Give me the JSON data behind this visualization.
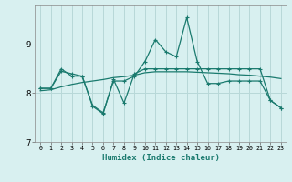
{
  "x": [
    0,
    1,
    2,
    3,
    4,
    5,
    6,
    7,
    8,
    9,
    10,
    11,
    12,
    13,
    14,
    15,
    16,
    17,
    18,
    19,
    20,
    21,
    22,
    23
  ],
  "line1_y": [
    8.1,
    8.1,
    8.45,
    8.4,
    8.35,
    7.75,
    7.6,
    8.25,
    8.25,
    8.35,
    8.65,
    9.1,
    8.85,
    8.75,
    9.55,
    8.65,
    8.2,
    8.2,
    8.25,
    8.25,
    8.25,
    8.25,
    7.85,
    7.7
  ],
  "line2_y": [
    8.1,
    8.1,
    8.5,
    8.35,
    8.35,
    7.73,
    7.58,
    8.28,
    7.8,
    8.4,
    8.5,
    8.5,
    8.5,
    8.5,
    8.5,
    8.5,
    8.5,
    8.5,
    8.5,
    8.5,
    8.5,
    8.5,
    7.85,
    7.7
  ],
  "line3_y": [
    8.05,
    8.07,
    8.13,
    8.18,
    8.22,
    8.25,
    8.28,
    8.32,
    8.34,
    8.37,
    8.42,
    8.44,
    8.44,
    8.44,
    8.44,
    8.43,
    8.42,
    8.41,
    8.4,
    8.38,
    8.37,
    8.35,
    8.33,
    8.3
  ],
  "line_color": "#1a7a6e",
  "bg_color": "#d8f0f0",
  "grid_color": "#b8d8d8",
  "xlabel": "Humidex (Indice chaleur)",
  "ylim": [
    7.0,
    9.8
  ],
  "xlim": [
    -0.5,
    23.5
  ],
  "yticks": [
    7,
    8,
    9
  ],
  "xticks": [
    0,
    1,
    2,
    3,
    4,
    5,
    6,
    7,
    8,
    9,
    10,
    11,
    12,
    13,
    14,
    15,
    16,
    17,
    18,
    19,
    20,
    21,
    22,
    23
  ]
}
